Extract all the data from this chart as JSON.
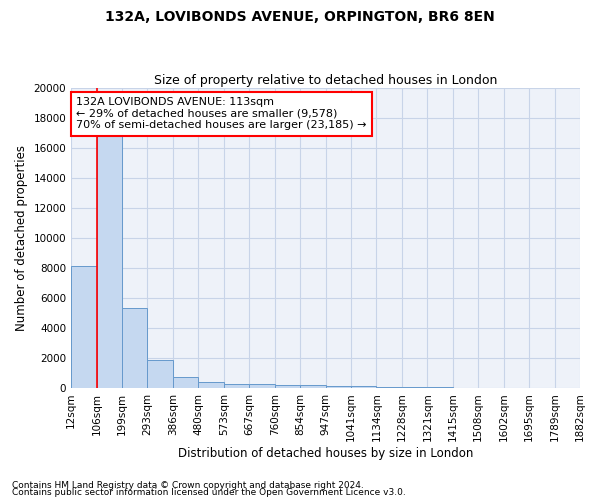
{
  "title1": "132A, LOVIBONDS AVENUE, ORPINGTON, BR6 8EN",
  "title2": "Size of property relative to detached houses in London",
  "xlabel": "Distribution of detached houses by size in London",
  "ylabel": "Number of detached properties",
  "bar_values": [
    8100,
    17000,
    5300,
    1850,
    700,
    380,
    280,
    230,
    200,
    170,
    120,
    90,
    65,
    45,
    30,
    22,
    15,
    12,
    8,
    5
  ],
  "x_labels": [
    "12sqm",
    "106sqm",
    "199sqm",
    "293sqm",
    "386sqm",
    "480sqm",
    "573sqm",
    "667sqm",
    "760sqm",
    "854sqm",
    "947sqm",
    "1041sqm",
    "1134sqm",
    "1228sqm",
    "1321sqm",
    "1415sqm",
    "1508sqm",
    "1602sqm",
    "1695sqm",
    "1789sqm",
    "1882sqm"
  ],
  "bar_color": "#c5d8f0",
  "bar_edge_color": "#6699cc",
  "bar_edge_width": 0.7,
  "red_line_x": 0.5,
  "annotation_text": "132A LOVIBONDS AVENUE: 113sqm\n← 29% of detached houses are smaller (9,578)\n70% of semi-detached houses are larger (23,185) →",
  "annotation_box_color": "white",
  "annotation_box_edge_color": "red",
  "ylim": [
    0,
    20000
  ],
  "yticks": [
    0,
    2000,
    4000,
    6000,
    8000,
    10000,
    12000,
    14000,
    16000,
    18000,
    20000
  ],
  "footer1": "Contains HM Land Registry data © Crown copyright and database right 2024.",
  "footer2": "Contains public sector information licensed under the Open Government Licence v3.0.",
  "bg_color": "#eef2f9",
  "grid_color": "#c8d4e8",
  "title1_fontsize": 10,
  "title2_fontsize": 9,
  "xlabel_fontsize": 8.5,
  "ylabel_fontsize": 8.5,
  "tick_fontsize": 7.5,
  "annotation_fontsize": 8,
  "footer_fontsize": 6.5
}
